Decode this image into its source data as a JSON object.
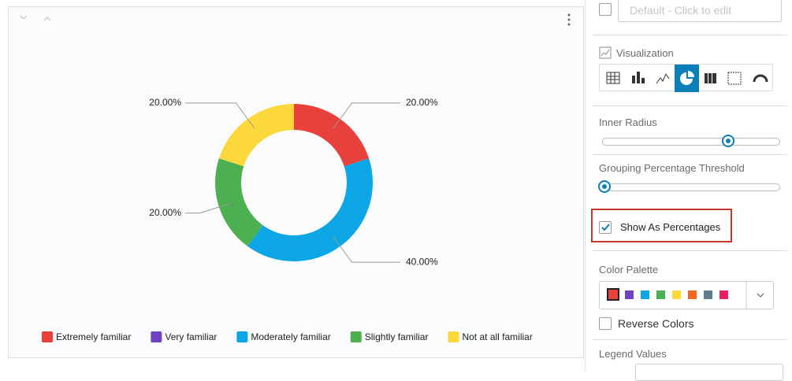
{
  "chart_data": {
    "type": "donut",
    "categories": [
      "Extremely familiar",
      "Very familiar",
      "Moderately familiar",
      "Slightly familiar",
      "Not at all familiar"
    ],
    "values": [
      20,
      0,
      40,
      20,
      20
    ],
    "value_labels": [
      "20.00%",
      null,
      "40.00%",
      "20.00%",
      "20.00%"
    ],
    "colors": [
      "#e8403b",
      "#6f42c1",
      "#0ca5e6",
      "#4caf50",
      "#fdd83b"
    ],
    "legend": "bottom"
  },
  "panel": {
    "default_field": "Default - Click to edit",
    "visualization": "Visualization",
    "inner_radius": "Inner Radius",
    "grouping_threshold": "Grouping Percentage Threshold",
    "show_as_percentages": "Show As Percentages",
    "color_palette": "Color Palette",
    "reverse_colors": "Reverse Colors",
    "legend_values": "Legend Values"
  }
}
